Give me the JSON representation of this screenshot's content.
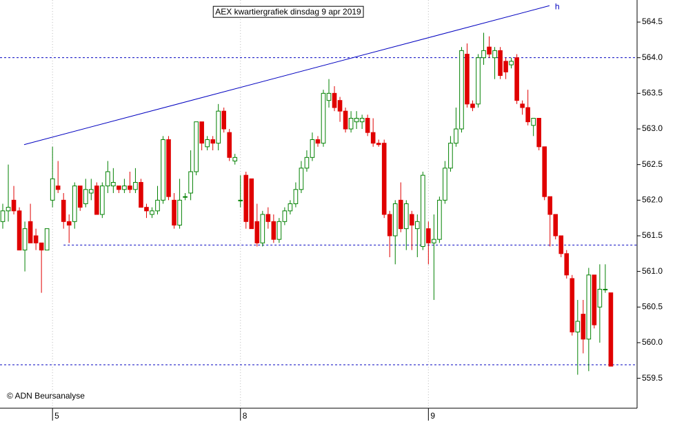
{
  "chart_data": {
    "type": "candlestick",
    "title": "AEX kwartiergrafiek dinsdag 9 apr 2019",
    "credit": "© ADN Beursanalyse",
    "open": [
      561.7,
      561.85,
      562.0,
      561.85,
      561.3,
      561.7,
      561.5,
      561.4,
      561.3,
      562.0,
      562.2,
      562.0,
      561.7,
      561.7,
      562.2,
      561.95,
      562.1,
      562.2,
      561.8,
      562.2,
      562.2,
      562.2,
      562.15,
      562.2,
      562.15,
      562.25,
      561.9,
      561.8,
      561.85,
      562.0,
      562.85,
      562.0,
      561.65,
      562.05,
      562.1,
      562.4,
      563.1,
      562.75,
      562.85,
      562.8,
      563.25,
      562.95,
      562.55,
      562.0,
      562.35,
      562.3,
      561.7,
      561.4,
      561.8,
      561.7,
      561.45,
      561.7,
      561.85,
      561.95,
      562.15,
      562.45,
      562.6,
      562.85,
      562.8,
      563.4,
      563.5,
      563.4,
      563.25,
      563.0,
      563.1,
      563.1,
      563.15,
      562.95,
      562.8,
      562.8,
      561.8,
      561.5,
      562.0,
      561.6,
      561.8,
      561.6,
      561.35,
      561.6,
      561.4,
      561.45,
      562.0,
      562.45,
      562.8,
      563.0,
      564.05,
      563.35,
      563.35,
      564.0,
      564.15,
      564.0,
      564.1,
      563.95,
      563.9,
      564.0,
      563.35,
      563.3,
      563.05,
      563.15,
      562.75,
      562.05,
      561.8,
      561.5,
      561.25,
      560.9,
      560.15,
      560.4,
      560.05,
      560.95,
      560.5,
      560.75,
      560.7
    ],
    "high": [
      561.95,
      562.5,
      562.2,
      561.9,
      561.7,
      561.95,
      561.6,
      561.4,
      561.6,
      562.75,
      562.55,
      562.1,
      561.8,
      562.25,
      562.2,
      562.3,
      562.3,
      562.25,
      562.25,
      562.55,
      562.45,
      562.2,
      562.3,
      562.4,
      562.45,
      562.3,
      561.95,
      561.9,
      562.2,
      562.9,
      562.9,
      562.1,
      562.3,
      562.1,
      562.7,
      563.1,
      563.1,
      562.9,
      562.9,
      563.35,
      563.3,
      563.0,
      562.65,
      562.35,
      562.4,
      562.3,
      561.95,
      561.85,
      561.9,
      561.8,
      561.75,
      561.9,
      562.0,
      562.25,
      562.55,
      562.7,
      562.95,
      562.9,
      563.55,
      563.7,
      563.6,
      563.45,
      563.3,
      563.25,
      563.25,
      563.2,
      563.2,
      563.15,
      562.85,
      562.85,
      561.85,
      562.0,
      562.25,
      562.0,
      561.85,
      561.8,
      562.4,
      561.7,
      561.8,
      562.05,
      562.55,
      562.9,
      563.3,
      564.15,
      564.2,
      563.4,
      564.05,
      564.35,
      564.3,
      564.15,
      564.15,
      564.0,
      564.0,
      564.05,
      563.4,
      563.55,
      563.15,
      563.15,
      562.75,
      562.05,
      561.8,
      561.5,
      561.3,
      560.95,
      560.6,
      560.6,
      561.05,
      560.95,
      561.1,
      561.1,
      560.7
    ],
    "low": [
      561.6,
      561.7,
      561.8,
      561.3,
      561.0,
      561.4,
      561.3,
      560.7,
      561.3,
      561.9,
      562.1,
      561.6,
      561.4,
      561.6,
      561.85,
      561.9,
      562.0,
      561.8,
      561.75,
      562.1,
      562.1,
      562.1,
      562.1,
      562.1,
      562.1,
      561.9,
      561.75,
      561.75,
      561.8,
      561.95,
      562.0,
      561.6,
      561.6,
      562.0,
      562.0,
      562.35,
      562.7,
      562.7,
      562.7,
      562.7,
      562.95,
      562.55,
      562.5,
      561.9,
      561.6,
      561.6,
      561.35,
      561.35,
      561.6,
      561.4,
      561.4,
      561.65,
      561.8,
      561.9,
      562.1,
      562.4,
      562.55,
      562.75,
      562.75,
      563.3,
      563.25,
      563.1,
      562.95,
      562.95,
      563.0,
      563.0,
      562.9,
      562.75,
      562.75,
      561.75,
      561.2,
      561.1,
      561.55,
      561.3,
      561.3,
      561.2,
      561.3,
      561.1,
      560.6,
      561.4,
      561.95,
      562.4,
      562.75,
      562.95,
      563.3,
      563.25,
      563.3,
      563.9,
      564.0,
      563.7,
      563.7,
      563.7,
      563.85,
      563.35,
      563.2,
      563.05,
      562.9,
      562.7,
      562.0,
      561.35,
      561.45,
      561.2,
      560.9,
      560.1,
      559.55,
      559.85,
      559.6,
      560.2,
      560.0,
      560.7,
      559.67
    ],
    "close": [
      561.85,
      561.9,
      561.85,
      561.3,
      561.6,
      561.4,
      561.4,
      561.3,
      561.6,
      562.3,
      562.15,
      561.7,
      561.65,
      562.2,
      561.9,
      562.15,
      562.15,
      561.8,
      562.2,
      562.4,
      562.25,
      562.15,
      562.2,
      562.15,
      562.25,
      561.9,
      561.85,
      561.85,
      562.0,
      562.85,
      562.05,
      561.65,
      562.0,
      562.05,
      562.4,
      563.1,
      562.8,
      562.85,
      562.8,
      563.25,
      563.0,
      562.6,
      562.6,
      562.0,
      561.7,
      561.6,
      561.4,
      561.8,
      561.7,
      561.45,
      561.7,
      561.85,
      561.95,
      562.15,
      562.45,
      562.6,
      562.85,
      562.8,
      563.5,
      563.5,
      563.3,
      563.25,
      563.0,
      563.15,
      563.15,
      563.15,
      562.95,
      562.8,
      562.78,
      561.8,
      561.5,
      561.95,
      561.6,
      561.95,
      561.65,
      561.7,
      562.35,
      561.4,
      561.45,
      562.0,
      562.45,
      562.8,
      563.0,
      564.1,
      563.35,
      563.3,
      564.0,
      564.1,
      564.05,
      564.1,
      563.75,
      563.8,
      563.95,
      563.4,
      563.3,
      563.1,
      563.15,
      562.75,
      562.05,
      561.8,
      561.5,
      561.25,
      560.95,
      560.15,
      560.3,
      560.05,
      560.95,
      560.25,
      560.75,
      560.75,
      559.67
    ],
    "up_color": "#008000",
    "down_color": "#e00000",
    "xlim": [
      -0.5,
      114.75
    ],
    "xticks": [
      {
        "value": 9,
        "label": "5"
      },
      {
        "value": 43,
        "label": "8"
      },
      {
        "value": 77,
        "label": "9"
      }
    ],
    "ylim": [
      559.08,
      564.81
    ],
    "yticks": [
      {
        "value": 559.5,
        "label": "559.5"
      },
      {
        "value": 560,
        "label": "560.0"
      },
      {
        "value": 560.5,
        "label": "560.5"
      },
      {
        "value": 561,
        "label": "561.0"
      },
      {
        "value": 561.5,
        "label": "561.5"
      },
      {
        "value": 562,
        "label": "562.0"
      },
      {
        "value": 562.5,
        "label": "562.5"
      },
      {
        "value": 563,
        "label": "563.0"
      },
      {
        "value": 563.5,
        "label": "563.5"
      },
      {
        "value": 564,
        "label": "564.0"
      },
      {
        "value": 564.5,
        "label": "564.5"
      }
    ],
    "hlines": [
      {
        "value": 564.0,
        "start": -0.5
      },
      {
        "value": 561.37,
        "start": 11
      },
      {
        "value": 559.69,
        "start": -0.5
      }
    ],
    "trendline": {
      "x": [
        3.86,
        98.9
      ],
      "y": [
        562.78,
        564.73
      ],
      "label": "h",
      "color": "#0000c0"
    }
  }
}
